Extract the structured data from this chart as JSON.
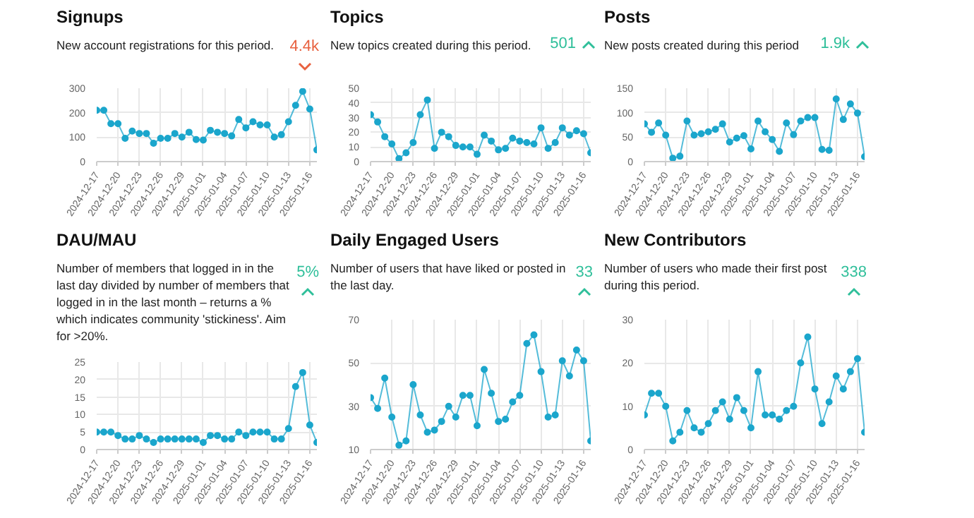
{
  "chart_data": [
    {
      "type": "line",
      "title": "Signups",
      "subtitle": "New account registrations for this period.",
      "annotations": [
        "4.4k"
      ],
      "x": [
        "2024-12-17",
        "2024-12-18",
        "2024-12-19",
        "2024-12-20",
        "2024-12-21",
        "2024-12-22",
        "2024-12-23",
        "2024-12-24",
        "2024-12-25",
        "2024-12-26",
        "2024-12-27",
        "2024-12-28",
        "2024-12-29",
        "2024-12-30",
        "2024-12-31",
        "2025-01-01",
        "2025-01-02",
        "2025-01-03",
        "2025-01-04",
        "2025-01-05",
        "2025-01-06",
        "2025-01-07",
        "2025-01-08",
        "2025-01-09",
        "2025-01-10",
        "2025-01-11",
        "2025-01-12",
        "2025-01-13",
        "2025-01-14",
        "2025-01-15",
        "2025-01-16",
        "2025-01-17"
      ],
      "xlim": [
        "2024-12-17",
        "2025-01-17"
      ],
      "xticks": [
        "2024-12-17",
        "2024-12-20",
        "2024-12-23",
        "2024-12-26",
        "2024-12-29",
        "2025-01-01",
        "2025-01-04",
        "2025-01-07",
        "2025-01-10",
        "2025-01-13",
        "2025-01-16"
      ],
      "series": [
        {
          "color": "#1ba6cc",
          "values": [
            210,
            210,
            155,
            155,
            95,
            125,
            115,
            115,
            75,
            95,
            95,
            115,
            100,
            120,
            90,
            88,
            128,
            120,
            115,
            105,
            172,
            138,
            163,
            150,
            150,
            100,
            110,
            163,
            230,
            287,
            215,
            48
          ]
        }
      ],
      "ylim": [
        0,
        300
      ],
      "yticks": [
        0,
        100,
        200,
        300
      ],
      "grid": true,
      "marker": "circle"
    },
    {
      "type": "line",
      "title": "Topics",
      "subtitle": "New topics created during this period.",
      "annotations": [
        "501"
      ],
      "x": [
        "2024-12-17",
        "2024-12-18",
        "2024-12-19",
        "2024-12-20",
        "2024-12-21",
        "2024-12-22",
        "2024-12-23",
        "2024-12-24",
        "2024-12-25",
        "2024-12-26",
        "2024-12-27",
        "2024-12-28",
        "2024-12-29",
        "2024-12-30",
        "2024-12-31",
        "2025-01-01",
        "2025-01-02",
        "2025-01-03",
        "2025-01-04",
        "2025-01-05",
        "2025-01-06",
        "2025-01-07",
        "2025-01-08",
        "2025-01-09",
        "2025-01-10",
        "2025-01-11",
        "2025-01-12",
        "2025-01-13",
        "2025-01-14",
        "2025-01-15",
        "2025-01-16",
        "2025-01-17"
      ],
      "xlim": [
        "2024-12-17",
        "2025-01-17"
      ],
      "xticks": [
        "2024-12-17",
        "2024-12-20",
        "2024-12-23",
        "2024-12-26",
        "2024-12-29",
        "2025-01-01",
        "2025-01-04",
        "2025-01-07",
        "2025-01-10",
        "2025-01-13",
        "2025-01-16"
      ],
      "series": [
        {
          "color": "#1ba6cc",
          "values": [
            32,
            27,
            17,
            12,
            2,
            6,
            13,
            32,
            42,
            9,
            20,
            17,
            11,
            10,
            10,
            5,
            18,
            14,
            8,
            9,
            16,
            14,
            13,
            12,
            23,
            9,
            13,
            23,
            18,
            21,
            19,
            6
          ]
        }
      ],
      "ylim": [
        0,
        50
      ],
      "yticks": [
        0,
        10,
        20,
        30,
        40,
        50
      ],
      "grid": true,
      "marker": "circle"
    },
    {
      "type": "line",
      "title": "Posts",
      "subtitle": "New posts created during this period",
      "annotations": [
        "1.9k"
      ],
      "x": [
        "2024-12-17",
        "2024-12-18",
        "2024-12-19",
        "2024-12-20",
        "2024-12-21",
        "2024-12-22",
        "2024-12-23",
        "2024-12-24",
        "2024-12-25",
        "2024-12-26",
        "2024-12-27",
        "2024-12-28",
        "2024-12-29",
        "2024-12-30",
        "2024-12-31",
        "2025-01-01",
        "2025-01-02",
        "2025-01-03",
        "2025-01-04",
        "2025-01-05",
        "2025-01-06",
        "2025-01-07",
        "2025-01-08",
        "2025-01-09",
        "2025-01-10",
        "2025-01-11",
        "2025-01-12",
        "2025-01-13",
        "2025-01-14",
        "2025-01-15",
        "2025-01-16",
        "2025-01-17"
      ],
      "xlim": [
        "2024-12-17",
        "2025-01-17"
      ],
      "xticks": [
        "2024-12-17",
        "2024-12-20",
        "2024-12-23",
        "2024-12-26",
        "2024-12-29",
        "2025-01-01",
        "2025-01-04",
        "2025-01-07",
        "2025-01-10",
        "2025-01-13",
        "2025-01-16"
      ],
      "series": [
        {
          "color": "#1ba6cc",
          "values": [
            77,
            60,
            79,
            54,
            7,
            11,
            83,
            54,
            57,
            61,
            66,
            77,
            40,
            48,
            53,
            26,
            83,
            61,
            45,
            21,
            79,
            55,
            83,
            90,
            90,
            25,
            23,
            128,
            86,
            118,
            99,
            10
          ]
        }
      ],
      "ylim": [
        0,
        150
      ],
      "yticks": [
        0,
        50,
        100,
        150
      ],
      "grid": true,
      "marker": "circle"
    },
    {
      "type": "line",
      "title": "DAU/MAU",
      "subtitle": "Number of members that logged in in the last day divided by number of members that logged in in the last month – returns a % which indicates community 'stickiness'. Aim for >20%.",
      "annotations": [
        "5%"
      ],
      "x": [
        "2024-12-17",
        "2024-12-18",
        "2024-12-19",
        "2024-12-20",
        "2024-12-21",
        "2024-12-22",
        "2024-12-23",
        "2024-12-24",
        "2024-12-25",
        "2024-12-26",
        "2024-12-27",
        "2024-12-28",
        "2024-12-29",
        "2024-12-30",
        "2024-12-31",
        "2025-01-01",
        "2025-01-02",
        "2025-01-03",
        "2025-01-04",
        "2025-01-05",
        "2025-01-06",
        "2025-01-07",
        "2025-01-08",
        "2025-01-09",
        "2025-01-10",
        "2025-01-11",
        "2025-01-12",
        "2025-01-13",
        "2025-01-14",
        "2025-01-15",
        "2025-01-16",
        "2025-01-17"
      ],
      "xlim": [
        "2024-12-17",
        "2025-01-17"
      ],
      "xticks": [
        "2024-12-17",
        "2024-12-20",
        "2024-12-23",
        "2024-12-26",
        "2024-12-29",
        "2025-01-01",
        "2025-01-04",
        "2025-01-07",
        "2025-01-10",
        "2025-01-13",
        "2025-01-16"
      ],
      "series": [
        {
          "color": "#1ba6cc",
          "values": [
            5,
            5,
            5,
            4,
            3,
            3,
            4,
            3,
            2,
            3,
            3,
            3,
            3,
            3,
            3,
            2,
            4,
            4,
            3,
            3,
            5,
            4,
            5,
            5,
            5,
            3,
            3,
            6,
            18,
            22,
            7,
            2
          ]
        }
      ],
      "ylim": [
        0,
        25
      ],
      "yticks": [
        0,
        5,
        10,
        15,
        20,
        25
      ],
      "grid": true,
      "marker": "circle"
    },
    {
      "type": "line",
      "title": "Daily Engaged Users",
      "subtitle": "Number of users that have liked or posted in the last day.",
      "annotations": [
        "33"
      ],
      "x": [
        "2024-12-17",
        "2024-12-18",
        "2024-12-19",
        "2024-12-20",
        "2024-12-21",
        "2024-12-22",
        "2024-12-23",
        "2024-12-24",
        "2024-12-25",
        "2024-12-26",
        "2024-12-27",
        "2024-12-28",
        "2024-12-29",
        "2024-12-30",
        "2024-12-31",
        "2025-01-01",
        "2025-01-02",
        "2025-01-03",
        "2025-01-04",
        "2025-01-05",
        "2025-01-06",
        "2025-01-07",
        "2025-01-08",
        "2025-01-09",
        "2025-01-10",
        "2025-01-11",
        "2025-01-12",
        "2025-01-13",
        "2025-01-14",
        "2025-01-15",
        "2025-01-16",
        "2025-01-17"
      ],
      "xlim": [
        "2024-12-17",
        "2025-01-17"
      ],
      "xticks": [
        "2024-12-17",
        "2024-12-20",
        "2024-12-23",
        "2024-12-26",
        "2024-12-29",
        "2025-01-01",
        "2025-01-04",
        "2025-01-07",
        "2025-01-10",
        "2025-01-13",
        "2025-01-16"
      ],
      "series": [
        {
          "color": "#1ba6cc",
          "values": [
            34,
            29,
            43,
            25,
            12,
            14,
            40,
            26,
            18,
            19,
            23,
            30,
            25,
            35,
            35,
            21,
            47,
            36,
            23,
            24,
            32,
            35,
            59,
            63,
            46,
            25,
            26,
            51,
            44,
            56,
            51,
            14
          ]
        }
      ],
      "ylim": [
        10,
        70
      ],
      "yticks": [
        10,
        30,
        50,
        70
      ],
      "grid": true,
      "marker": "circle"
    },
    {
      "type": "line",
      "title": "New Contributors",
      "subtitle": "Number of users who made their first post during this period.",
      "annotations": [
        "338"
      ],
      "x": [
        "2024-12-17",
        "2024-12-18",
        "2024-12-19",
        "2024-12-20",
        "2024-12-21",
        "2024-12-22",
        "2024-12-23",
        "2024-12-24",
        "2024-12-25",
        "2024-12-26",
        "2024-12-27",
        "2024-12-28",
        "2024-12-29",
        "2024-12-30",
        "2024-12-31",
        "2025-01-01",
        "2025-01-02",
        "2025-01-03",
        "2025-01-04",
        "2025-01-05",
        "2025-01-06",
        "2025-01-07",
        "2025-01-08",
        "2025-01-09",
        "2025-01-10",
        "2025-01-11",
        "2025-01-12",
        "2025-01-13",
        "2025-01-14",
        "2025-01-15",
        "2025-01-16",
        "2025-01-17"
      ],
      "xlim": [
        "2024-12-17",
        "2025-01-17"
      ],
      "xticks": [
        "2024-12-17",
        "2024-12-20",
        "2024-12-23",
        "2024-12-26",
        "2024-12-29",
        "2025-01-01",
        "2025-01-04",
        "2025-01-07",
        "2025-01-10",
        "2025-01-13",
        "2025-01-16"
      ],
      "series": [
        {
          "color": "#1ba6cc",
          "values": [
            8,
            13,
            13,
            10,
            2,
            4,
            9,
            5,
            4,
            6,
            9,
            11,
            7,
            12,
            9,
            5,
            18,
            8,
            8,
            7,
            9,
            10,
            20,
            26,
            14,
            6,
            11,
            17,
            14,
            18,
            21,
            4
          ]
        }
      ],
      "ylim": [
        0,
        30
      ],
      "yticks": [
        0,
        10,
        20,
        30
      ],
      "grid": true,
      "marker": "circle"
    }
  ]
}
